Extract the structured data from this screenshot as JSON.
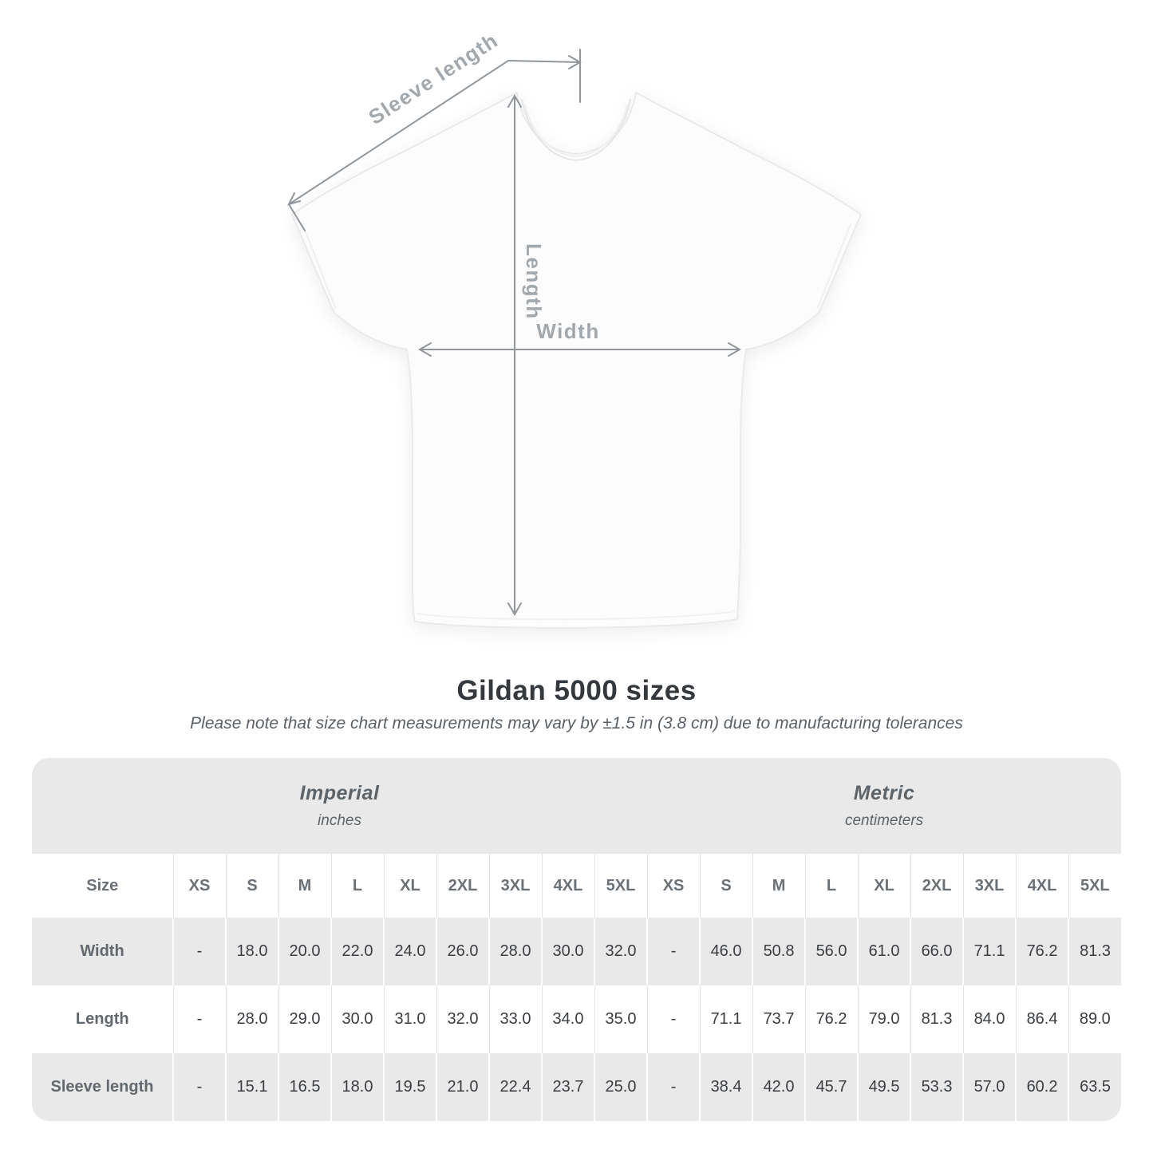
{
  "diagram": {
    "labels": {
      "sleeve_length": "Sleeve length",
      "length": "Length",
      "width": "Width"
    }
  },
  "title": "Gildan 5000 sizes",
  "subtitle": "Please note that size chart measurements may vary by ±1.5 in (3.8 cm) due to manufacturing tolerances",
  "table": {
    "groups": [
      {
        "label": "Imperial",
        "unit": "inches"
      },
      {
        "label": "Metric",
        "unit": "centimeters"
      }
    ],
    "size_col_header": "Size",
    "sizes": [
      "XS",
      "S",
      "M",
      "L",
      "XL",
      "2XL",
      "3XL",
      "4XL",
      "5XL"
    ],
    "rows": [
      {
        "label": "Width",
        "imperial": [
          "-",
          "18.0",
          "20.0",
          "22.0",
          "24.0",
          "26.0",
          "28.0",
          "30.0",
          "32.0"
        ],
        "metric": [
          "-",
          "46.0",
          "50.8",
          "56.0",
          "61.0",
          "66.0",
          "71.1",
          "76.2",
          "81.3"
        ]
      },
      {
        "label": "Length",
        "imperial": [
          "-",
          "28.0",
          "29.0",
          "30.0",
          "31.0",
          "32.0",
          "33.0",
          "34.0",
          "35.0"
        ],
        "metric": [
          "-",
          "71.1",
          "73.7",
          "76.2",
          "79.0",
          "81.3",
          "84.0",
          "86.4",
          "89.0"
        ]
      },
      {
        "label": "Sleeve length",
        "imperial": [
          "-",
          "15.1",
          "16.5",
          "18.0",
          "19.5",
          "21.0",
          "22.4",
          "23.7",
          "25.0"
        ],
        "metric": [
          "-",
          "38.4",
          "42.0",
          "45.7",
          "49.5",
          "53.3",
          "57.0",
          "60.2",
          "63.5"
        ]
      }
    ]
  },
  "colors": {
    "row_band_gray": "#e9e9e9",
    "annotation_line": "#90969b",
    "annotation_text": "#a3a8ad",
    "value_text": "#3a3d41",
    "header_text": "#6a7076"
  }
}
